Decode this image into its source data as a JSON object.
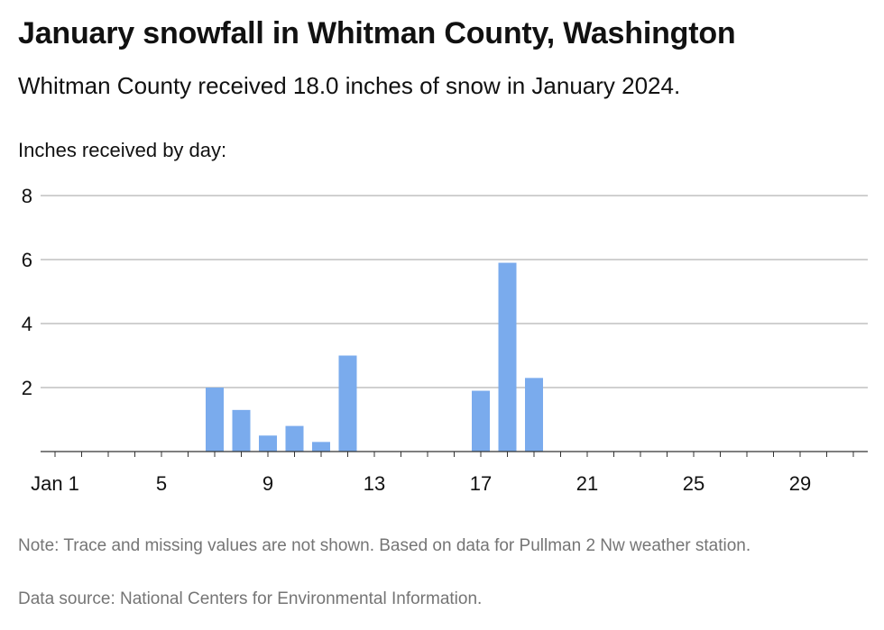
{
  "title": "January snowfall in Whitman County, Washington",
  "subtitle": "Whitman County received 18.0 inches of snow in January 2024.",
  "note": "Note: Trace and missing values are not shown. Based on data for Pullman 2 Nw weather station.",
  "source": "Data source: National Centers for Environmental Information.",
  "colors": {
    "bar": "#7aabed",
    "grid": "#b3b3b3",
    "axis": "#333333"
  },
  "chart_data": {
    "type": "bar",
    "title": "January snowfall in Whitman County, Washington",
    "ylabel": "Inches received by day:",
    "xlabel": "",
    "x_range": [
      1,
      31
    ],
    "ylim": [
      0,
      8
    ],
    "y_ticks": [
      2,
      4,
      6,
      8
    ],
    "x_ticks": [
      {
        "day": 1,
        "label": "Jan 1"
      },
      {
        "day": 5,
        "label": "5"
      },
      {
        "day": 9,
        "label": "9"
      },
      {
        "day": 13,
        "label": "13"
      },
      {
        "day": 17,
        "label": "17"
      },
      {
        "day": 21,
        "label": "21"
      },
      {
        "day": 25,
        "label": "25"
      },
      {
        "day": 29,
        "label": "29"
      }
    ],
    "grid": true,
    "series": [
      {
        "points": [
          {
            "day": 7,
            "value": 2.0
          },
          {
            "day": 8,
            "value": 1.3
          },
          {
            "day": 9,
            "value": 0.5
          },
          {
            "day": 10,
            "value": 0.8
          },
          {
            "day": 11,
            "value": 0.3
          },
          {
            "day": 12,
            "value": 3.0
          },
          {
            "day": 17,
            "value": 1.9
          },
          {
            "day": 18,
            "value": 5.9
          },
          {
            "day": 19,
            "value": 2.3
          }
        ]
      }
    ]
  }
}
